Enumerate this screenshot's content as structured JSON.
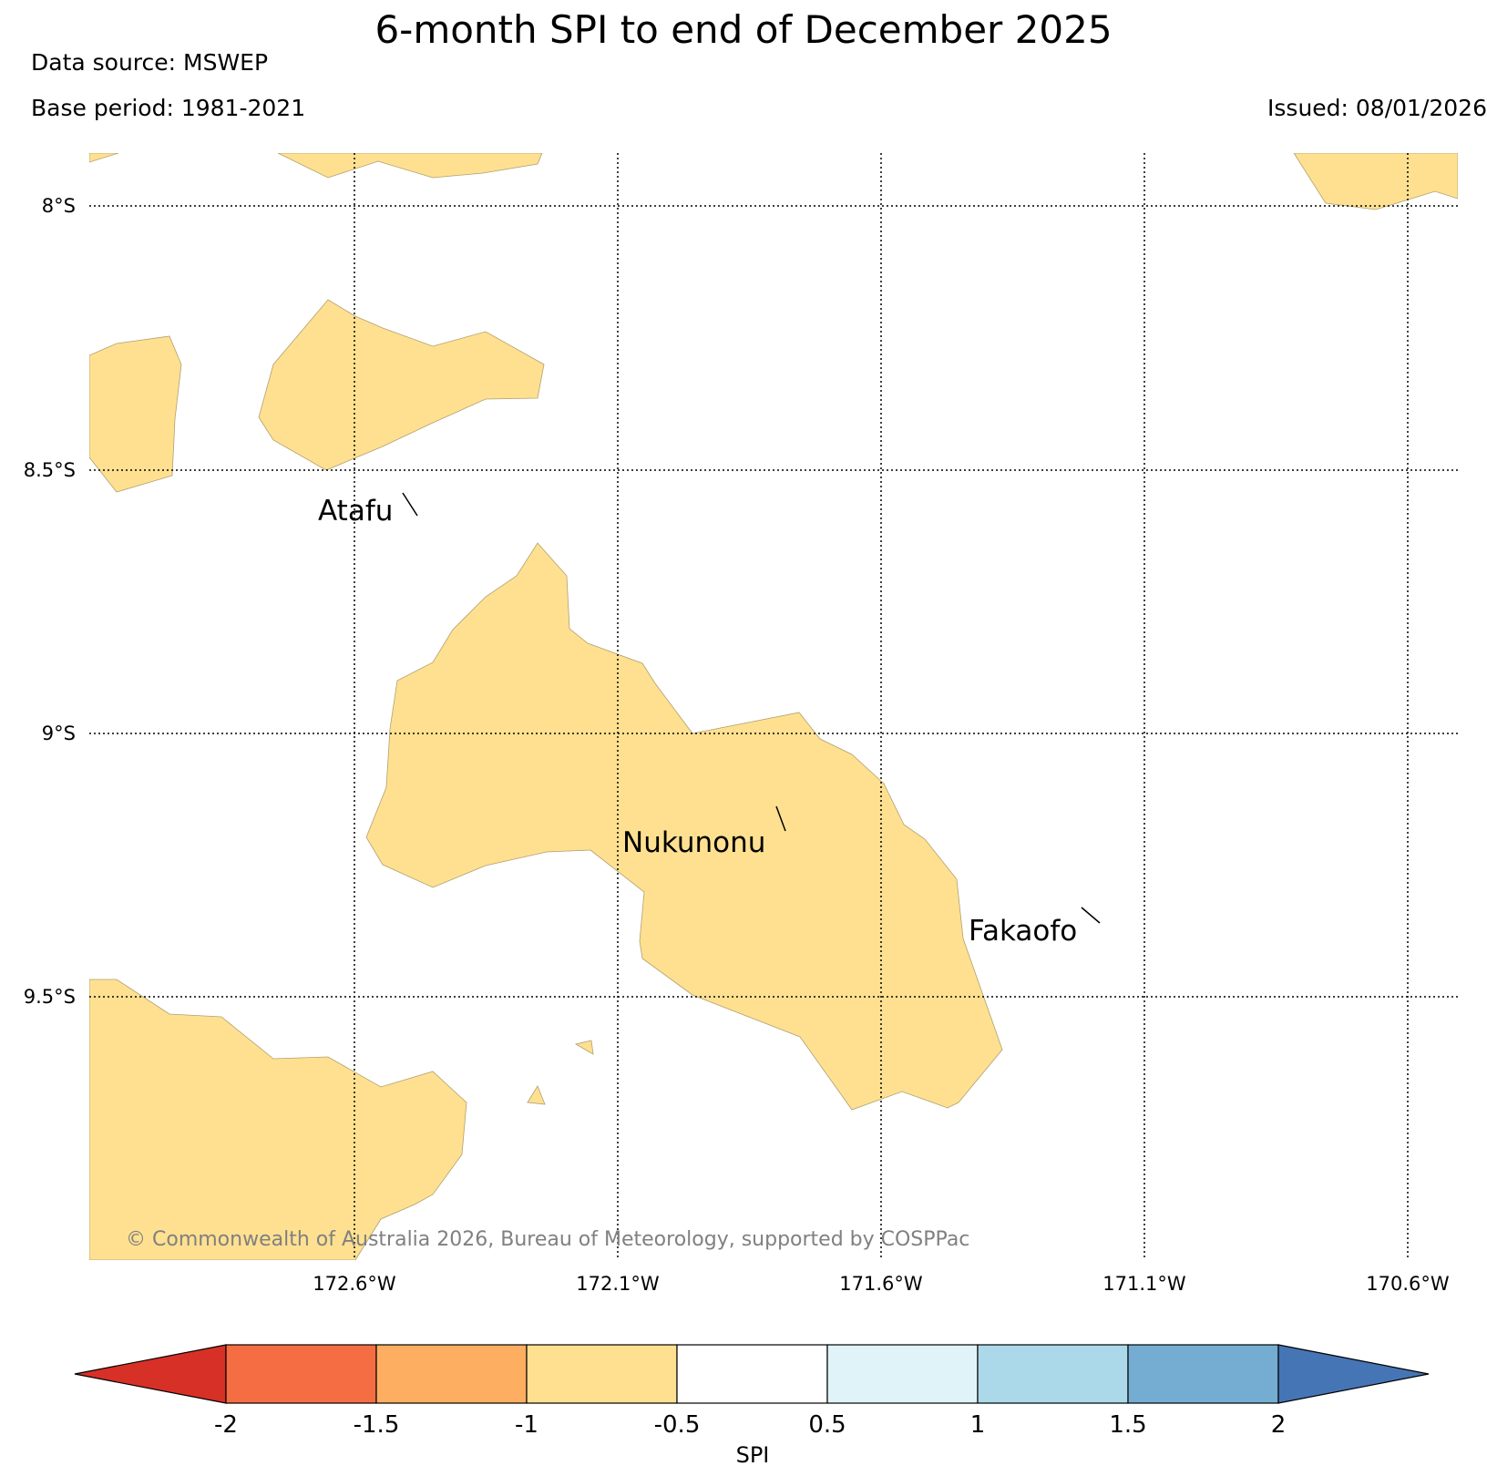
{
  "title": "6-month SPI to end of December 2025",
  "data_source": "Data source: MSWEP",
  "base_period": "Base period: 1981-2021",
  "issued": "Issued: 08/01/2026",
  "copyright": "© Commonwealth of Australia 2026, Bureau of Meteorology, supported by COSPPac",
  "lat_labels": [
    "8°S",
    "8.5°S",
    "9°S",
    "9.5°S"
  ],
  "lon_labels": [
    "172.6°W",
    "172.1°W",
    "171.6°W",
    "171.1°W",
    "170.6°W"
  ],
  "places": [
    "Atafu",
    "Nukunonu",
    "Fakaofo"
  ],
  "colorbar": {
    "label": "SPI",
    "ticks": [
      "-2",
      "-1.5",
      "-1",
      "-0.5",
      "0.5",
      "1",
      "1.5",
      "2"
    ],
    "colors": [
      "#d73027",
      "#f46d43",
      "#fdae61",
      "#fee090",
      "#ffffff",
      "#e0f3f8",
      "#abd9e9",
      "#74add1",
      "#4575b4"
    ]
  },
  "shading_color": "#fee090"
}
